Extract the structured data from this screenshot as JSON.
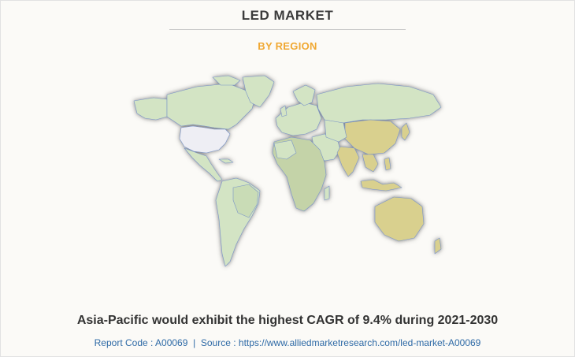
{
  "header": {
    "title": "LED MARKET",
    "subtitle": "BY REGION"
  },
  "map": {
    "highlighted_region": "Asia-Pacific",
    "colors": {
      "default_land": "#d3e4c4",
      "highlight": "#d9d08e",
      "usa": "#eeeef4",
      "africa_variant": "#c4d3a8",
      "border": "#7a94c8",
      "shadow": "#6b6b6b"
    }
  },
  "headline": "Asia-Pacific would exhibit the highest CAGR of 9.4% during 2021-2030",
  "footer": {
    "report_code_label": "Report Code : A00069",
    "separator": "|",
    "source_label": "Source : https://www.alliedmarketresearch.com/led-market-A00069"
  }
}
